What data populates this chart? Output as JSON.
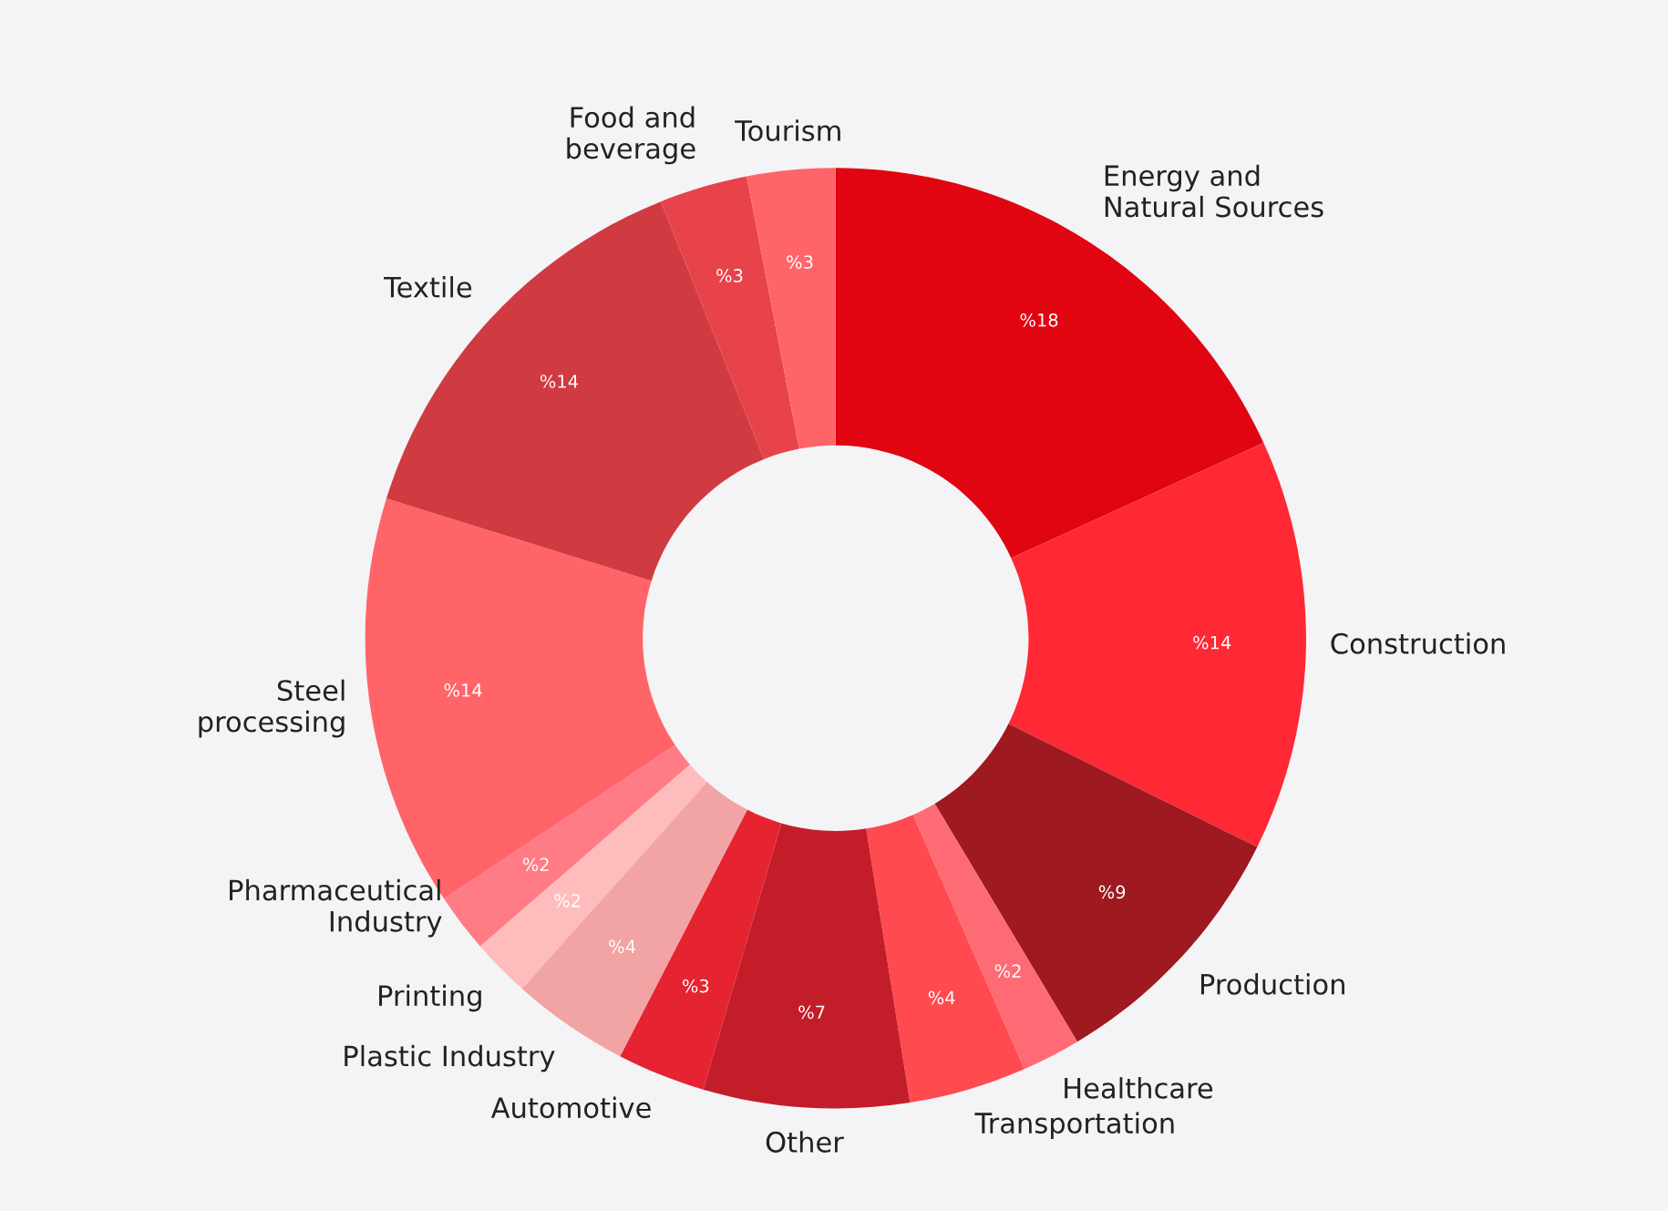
{
  "chart_data": {
    "type": "donut",
    "categories": [
      "Energy and\nNatural Sources",
      "Construction",
      "Production",
      "Healthcare",
      "Transportation",
      "Other",
      "Automotive",
      "Plastic Industry",
      "Printing",
      "Pharmaceutical\nIndustry",
      "Steel\nprocessing",
      "Textile",
      "Food and\nbeverage",
      "Tourism"
    ],
    "values": [
      18,
      14,
      9,
      2,
      4,
      7,
      3,
      4,
      2,
      2,
      14,
      14,
      3,
      3
    ],
    "value_labels": [
      "%18",
      "%14",
      "%9",
      "%2",
      "%4",
      "%7",
      "%3",
      "%4",
      "%2",
      "%2",
      "%14",
      "%14",
      "%3",
      "%3"
    ],
    "colors": [
      "#e10512",
      "#ff2835",
      "#9e1920",
      "#ff6b75",
      "#ff4a4f",
      "#c41d2a",
      "#e62330",
      "#f2a3a3",
      "#ffbcbc",
      "#ff7b85",
      "#ff6469",
      "#d03b41",
      "#e8434b",
      "#ff6469"
    ],
    "legend": false
  }
}
